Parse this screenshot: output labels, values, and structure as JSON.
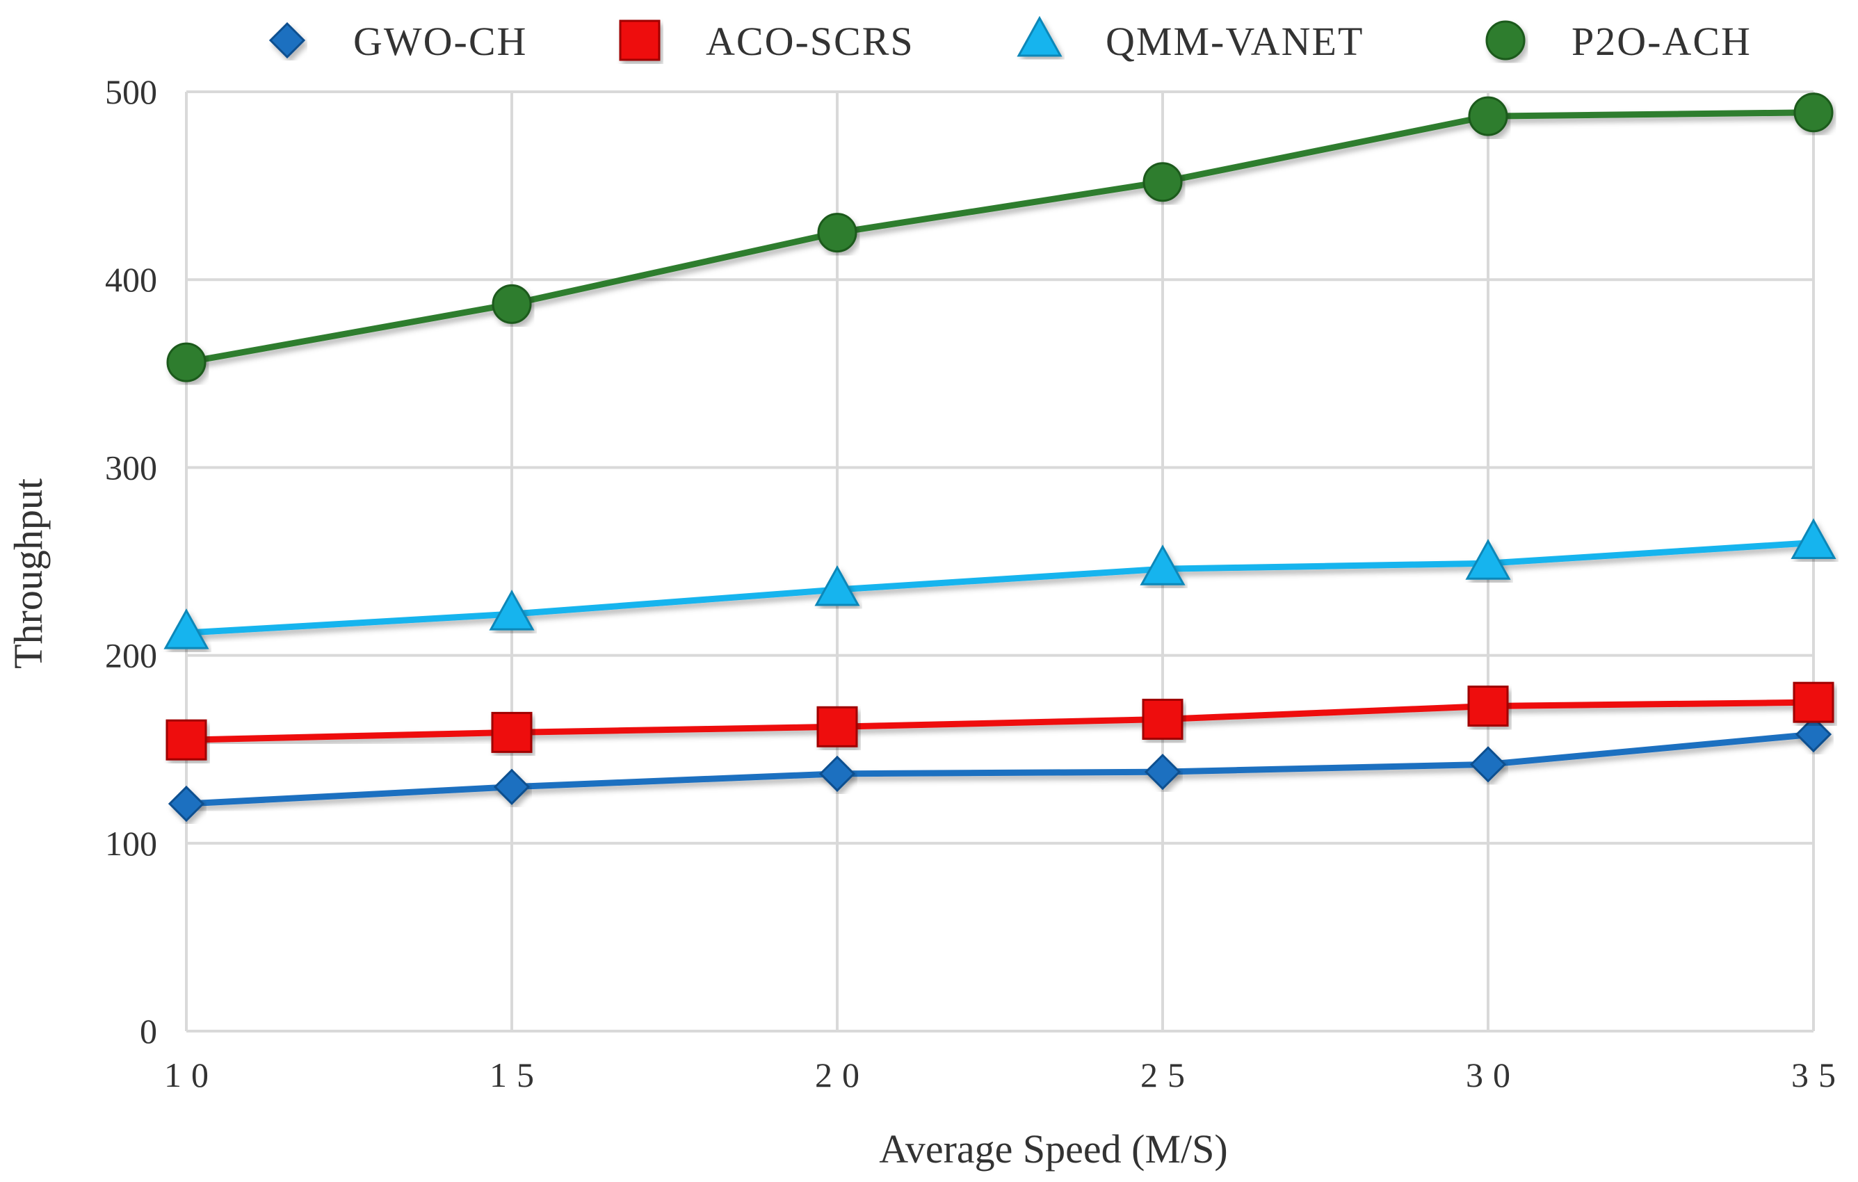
{
  "chart_data": {
    "type": "line",
    "title": "",
    "xlabel": "Average Speed (M/S)",
    "ylabel": "Throughput",
    "x": [
      10,
      15,
      20,
      25,
      30,
      35
    ],
    "x_tick_labels": [
      "10",
      "15",
      "20",
      "25",
      "30",
      "35"
    ],
    "y_tick_labels": [
      "0",
      "100",
      "200",
      "300",
      "400",
      "500"
    ],
    "xlim": [
      10,
      35
    ],
    "ylim": [
      0,
      500
    ],
    "grid": true,
    "legend_position": "top",
    "series": [
      {
        "name": "GWO-CH",
        "color": "#1f6fc0",
        "marker": "diamond",
        "values": [
          121,
          130,
          137,
          138,
          142,
          158
        ]
      },
      {
        "name": "ACO-SCRS",
        "color": "#ee1111",
        "marker": "square",
        "values": [
          155,
          159,
          162,
          166,
          173,
          175
        ]
      },
      {
        "name": "QMM-VANET",
        "color": "#14b4ee",
        "marker": "triangle",
        "values": [
          212,
          222,
          235,
          246,
          249,
          260
        ]
      },
      {
        "name": "P2O-ACH",
        "color": "#2e7d2e",
        "marker": "circle",
        "values": [
          356,
          387,
          425,
          452,
          487,
          489
        ]
      }
    ]
  }
}
